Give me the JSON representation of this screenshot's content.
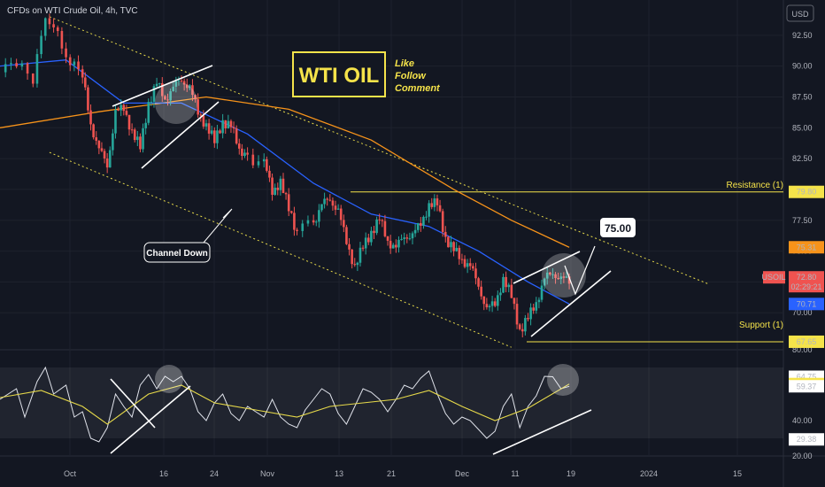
{
  "header": {
    "title": "CFDs on WTI Crude Oil, 4h, TVC",
    "currency": "USD"
  },
  "annotations": {
    "logo_text": "WTI OIL",
    "cta": [
      "Like",
      "Follow",
      "Comment"
    ],
    "channel_label": "Channel Down",
    "target_label": "75.00",
    "resistance_label": "Resistance (1)",
    "support_label": "Support (1)"
  },
  "chart_data": [
    {
      "type": "line",
      "subtype": "candlestick",
      "symbol": "USOIL",
      "timeframe": "4h",
      "ylim": [
        67,
        95
      ],
      "yticks": [
        70.0,
        72.5,
        75.0,
        77.5,
        80.0,
        82.5,
        85.0,
        87.5,
        90.0,
        92.5
      ],
      "ytick_labels": [
        "70.00",
        "72.50",
        "75.00",
        "77.50",
        "80.00",
        "82.50",
        "85.00",
        "87.50",
        "90.00",
        "92.50"
      ],
      "xticks": [
        "Oct",
        "16",
        "24",
        "Nov",
        "13",
        "21",
        "Dec",
        "11",
        "19",
        "2024",
        "15"
      ],
      "close_path": [
        [
          0,
          89.5
        ],
        [
          0.02,
          90.2
        ],
        [
          0.04,
          89.0
        ],
        [
          0.055,
          93.8
        ],
        [
          0.07,
          92.5
        ],
        [
          0.085,
          90.5
        ],
        [
          0.1,
          89.0
        ],
        [
          0.11,
          85.5
        ],
        [
          0.12,
          83.0
        ],
        [
          0.13,
          82.2
        ],
        [
          0.14,
          86.0
        ],
        [
          0.15,
          86.8
        ],
        [
          0.16,
          84.5
        ],
        [
          0.17,
          83.5
        ],
        [
          0.18,
          87.0
        ],
        [
          0.19,
          88.5
        ],
        [
          0.2,
          87.5
        ],
        [
          0.21,
          88.0
        ],
        [
          0.22,
          89.2
        ],
        [
          0.23,
          88.0
        ],
        [
          0.24,
          86.5
        ],
        [
          0.25,
          85.0
        ],
        [
          0.26,
          84.0
        ],
        [
          0.27,
          85.5
        ],
        [
          0.28,
          85.0
        ],
        [
          0.29,
          83.5
        ],
        [
          0.3,
          82.5
        ],
        [
          0.32,
          82.0
        ],
        [
          0.33,
          80.0
        ],
        [
          0.34,
          80.5
        ],
        [
          0.35,
          78.5
        ],
        [
          0.36,
          76.5
        ],
        [
          0.38,
          77.5
        ],
        [
          0.39,
          78.5
        ],
        [
          0.4,
          79.5
        ],
        [
          0.41,
          78.0
        ],
        [
          0.42,
          76.0
        ],
        [
          0.43,
          73.5
        ],
        [
          0.44,
          75.5
        ],
        [
          0.45,
          76.5
        ],
        [
          0.46,
          77.5
        ],
        [
          0.47,
          76.0
        ],
        [
          0.48,
          75.0
        ],
        [
          0.49,
          76.5
        ],
        [
          0.5,
          76.0
        ],
        [
          0.51,
          77.5
        ],
        [
          0.52,
          78.5
        ],
        [
          0.53,
          79.0
        ],
        [
          0.54,
          76.0
        ],
        [
          0.55,
          75.0
        ],
        [
          0.56,
          74.5
        ],
        [
          0.57,
          73.5
        ],
        [
          0.58,
          72.5
        ],
        [
          0.59,
          70.0
        ],
        [
          0.6,
          71.0
        ],
        [
          0.61,
          72.5
        ],
        [
          0.62,
          71.5
        ],
        [
          0.63,
          68.5
        ],
        [
          0.64,
          69.5
        ],
        [
          0.65,
          71.0
        ],
        [
          0.66,
          72.5
        ],
        [
          0.67,
          73.5
        ],
        [
          0.68,
          72.5
        ],
        [
          0.69,
          72.8
        ]
      ],
      "series": [
        {
          "name": "",
          "color": "#f7931a",
          "values": [
            [
              0,
              85.0
            ],
            [
              0.12,
              86.3
            ],
            [
              0.25,
              87.5
            ],
            [
              0.35,
              86.5
            ],
            [
              0.45,
              84.0
            ],
            [
              0.55,
              80.0
            ],
            [
              0.62,
              77.5
            ],
            [
              0.69,
              75.31
            ]
          ]
        },
        {
          "name": "",
          "color": "#2962ff",
          "values": [
            [
              0,
              90.0
            ],
            [
              0.08,
              90.5
            ],
            [
              0.15,
              87.0
            ],
            [
              0.22,
              87.0
            ],
            [
              0.3,
              84.5
            ],
            [
              0.38,
              80.5
            ],
            [
              0.45,
              78.0
            ],
            [
              0.52,
              77.0
            ],
            [
              0.58,
              75.0
            ],
            [
              0.64,
              72.5
            ],
            [
              0.69,
              70.71
            ]
          ]
        }
      ],
      "channel_upper": [
        [
          0.06,
          94.0
        ],
        [
          0.86,
          72.3
        ]
      ],
      "channel_lower": [
        [
          0.06,
          83.0
        ],
        [
          0.62,
          67.2
        ]
      ],
      "resistance": {
        "value": 79.8,
        "label": "Resistance (1)"
      },
      "support": {
        "value": 67.65,
        "label": "Support (1)"
      },
      "target": {
        "value": 75.0,
        "label": "75.00"
      },
      "last_price": {
        "symbol": "USOIL",
        "value": "72.80",
        "countdown": "02:29:21"
      },
      "price_tags": [
        {
          "value": 79.8,
          "label": "79.80",
          "bg": "#f5e34a",
          "fg": "#131722"
        },
        {
          "value": 75.31,
          "label": "75.31",
          "bg": "#f7931a",
          "fg": "#131722"
        },
        {
          "value": 70.71,
          "label": "70.71",
          "bg": "#2962ff",
          "fg": "#ffffff"
        },
        {
          "value": 67.65,
          "label": "67.65",
          "bg": "#f5e34a",
          "fg": "#131722"
        }
      ]
    },
    {
      "type": "line",
      "subtype": "rsi",
      "ylim": [
        20,
        80
      ],
      "yticks": [
        20.0,
        40.0,
        60.0,
        80.0
      ],
      "ytick_labels": [
        "20.00",
        "40.00",
        "60.00",
        "80.00"
      ],
      "band": [
        30,
        70
      ],
      "rsi_path": [
        [
          0,
          52
        ],
        [
          0.02,
          58
        ],
        [
          0.03,
          42
        ],
        [
          0.045,
          62
        ],
        [
          0.055,
          70
        ],
        [
          0.065,
          55
        ],
        [
          0.08,
          60
        ],
        [
          0.09,
          42
        ],
        [
          0.1,
          45
        ],
        [
          0.11,
          30
        ],
        [
          0.12,
          28
        ],
        [
          0.13,
          36
        ],
        [
          0.14,
          55
        ],
        [
          0.15,
          48
        ],
        [
          0.16,
          42
        ],
        [
          0.17,
          60
        ],
        [
          0.18,
          66
        ],
        [
          0.19,
          58
        ],
        [
          0.2,
          65
        ],
        [
          0.21,
          62
        ],
        [
          0.22,
          65
        ],
        [
          0.23,
          58
        ],
        [
          0.24,
          45
        ],
        [
          0.25,
          40
        ],
        [
          0.26,
          50
        ],
        [
          0.27,
          55
        ],
        [
          0.28,
          44
        ],
        [
          0.29,
          40
        ],
        [
          0.3,
          48
        ],
        [
          0.31,
          45
        ],
        [
          0.32,
          42
        ],
        [
          0.33,
          52
        ],
        [
          0.34,
          42
        ],
        [
          0.35,
          38
        ],
        [
          0.36,
          36
        ],
        [
          0.37,
          46
        ],
        [
          0.38,
          52
        ],
        [
          0.39,
          58
        ],
        [
          0.4,
          55
        ],
        [
          0.41,
          44
        ],
        [
          0.42,
          38
        ],
        [
          0.43,
          48
        ],
        [
          0.44,
          58
        ],
        [
          0.45,
          56
        ],
        [
          0.46,
          52
        ],
        [
          0.47,
          45
        ],
        [
          0.48,
          52
        ],
        [
          0.49,
          60
        ],
        [
          0.5,
          58
        ],
        [
          0.51,
          64
        ],
        [
          0.52,
          68
        ],
        [
          0.53,
          55
        ],
        [
          0.54,
          44
        ],
        [
          0.55,
          38
        ],
        [
          0.56,
          42
        ],
        [
          0.57,
          40
        ],
        [
          0.58,
          35
        ],
        [
          0.59,
          30
        ],
        [
          0.6,
          34
        ],
        [
          0.61,
          48
        ],
        [
          0.62,
          55
        ],
        [
          0.63,
          36
        ],
        [
          0.64,
          48
        ],
        [
          0.65,
          54
        ],
        [
          0.66,
          65
        ],
        [
          0.67,
          64.75
        ],
        [
          0.68,
          58
        ],
        [
          0.69,
          59.37
        ]
      ],
      "series": [
        {
          "name": "",
          "color": "#e6d94a",
          "values": [
            [
              0,
              53
            ],
            [
              0.05,
              57
            ],
            [
              0.1,
              48
            ],
            [
              0.13,
              38
            ],
            [
              0.18,
              55
            ],
            [
              0.22,
              60
            ],
            [
              0.26,
              50
            ],
            [
              0.31,
              46
            ],
            [
              0.36,
              42
            ],
            [
              0.4,
              48
            ],
            [
              0.44,
              50
            ],
            [
              0.48,
              52
            ],
            [
              0.52,
              57
            ],
            [
              0.56,
              48
            ],
            [
              0.6,
              40
            ],
            [
              0.64,
              47
            ],
            [
              0.69,
              60.65
            ]
          ]
        }
      ],
      "tags": [
        {
          "value": 64.75,
          "label": "64.75",
          "bg": "#ffffff",
          "fg": "#131722"
        },
        {
          "value": 60.65,
          "label": "60.65",
          "bg": "#f5e34a",
          "fg": "#131722"
        },
        {
          "value": 59.37,
          "label": "59.37",
          "bg": "#ffffff",
          "fg": "#131722"
        },
        {
          "value": 29.38,
          "label": "29.38",
          "bg": "#ffffff",
          "fg": "#131722"
        }
      ]
    }
  ]
}
